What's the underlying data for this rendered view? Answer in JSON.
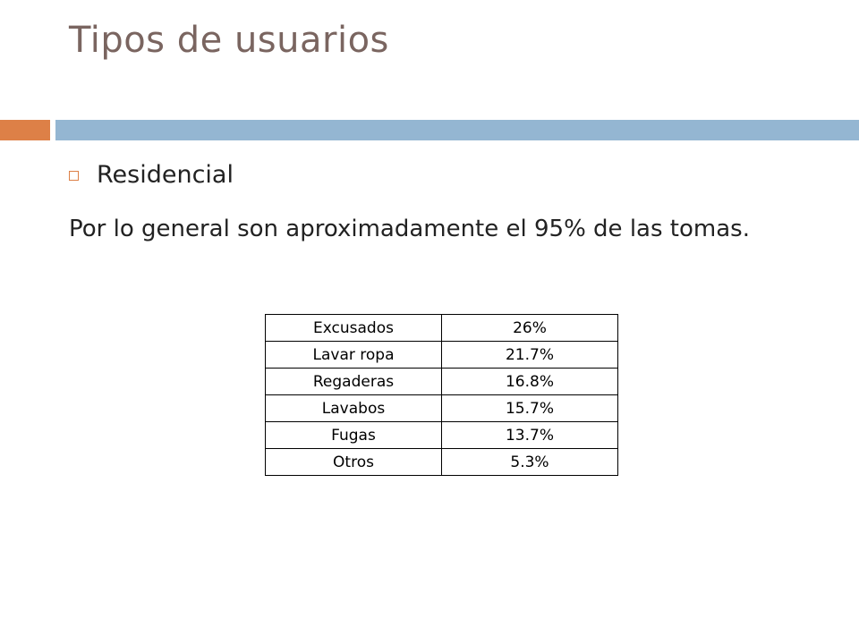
{
  "slide": {
    "title": "Tipos de usuarios",
    "bullet": "Residencial",
    "paragraph": "Por lo general son aproximadamente el 95% de las tomas."
  },
  "colors": {
    "title": "#7a6560",
    "accent_orange": "#dd8047",
    "accent_blue": "#94b6d2"
  },
  "icons": {
    "bullet": "square-bullet-icon"
  },
  "table": {
    "rows": [
      {
        "label": "Excusados",
        "value": "26%"
      },
      {
        "label": "Lavar ropa",
        "value": "21.7%"
      },
      {
        "label": "Regaderas",
        "value": "16.8%"
      },
      {
        "label": "Lavabos",
        "value": "15.7%"
      },
      {
        "label": "Fugas",
        "value": "13.7%"
      },
      {
        "label": "Otros",
        "value": "5.3%"
      }
    ]
  }
}
